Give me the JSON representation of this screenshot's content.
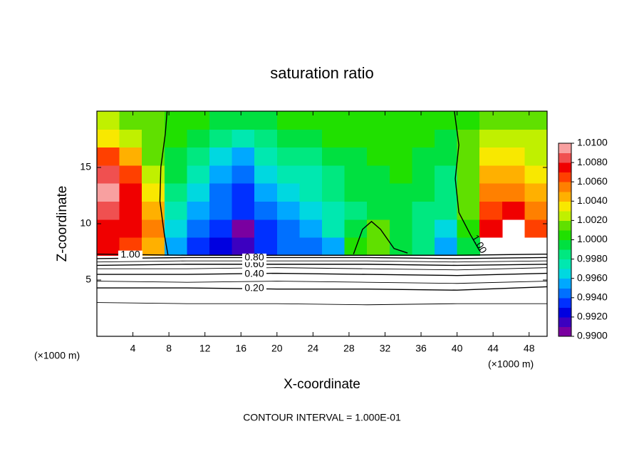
{
  "chart_data": {
    "type": "heatmap",
    "title": "saturation ratio",
    "xlabel": "X-coordinate",
    "ylabel": "Z-coordinate",
    "x_unit_label": "(×1000 m)",
    "footer": "CONTOUR INTERVAL = 1.000E-01",
    "xlim": [
      0,
      50
    ],
    "xticks": [
      4,
      8,
      12,
      16,
      20,
      24,
      28,
      32,
      36,
      40,
      44,
      48
    ],
    "ylim": [
      0,
      20
    ],
    "yticks": [
      5,
      10,
      15
    ],
    "x": [
      1.25,
      3.75,
      6.25,
      8.75,
      11.25,
      13.75,
      16.25,
      18.75,
      21.25,
      23.75,
      26.25,
      28.75,
      31.25,
      33.75,
      36.25,
      38.75,
      41.25,
      43.75,
      46.25,
      48.75
    ],
    "y": [
      8.0,
      9.6,
      11.2,
      12.8,
      14.4,
      16.0,
      17.6,
      19.2
    ],
    "values": [
      [
        1.007,
        1.006,
        1.004,
        0.995,
        0.993,
        0.992,
        0.991,
        0.993,
        0.994,
        0.994,
        0.995,
        1.0,
        1.001,
        0.999,
        0.998,
        0.995,
        0.999,
        null,
        null,
        null
      ],
      [
        1.007,
        1.007,
        1.005,
        0.996,
        0.994,
        0.993,
        0.99,
        0.993,
        0.994,
        0.995,
        0.997,
        0.999,
        1.001,
        0.999,
        0.998,
        0.996,
        1.0,
        1.007,
        null,
        1.006
      ],
      [
        1.008,
        1.007,
        1.004,
        0.997,
        0.995,
        0.994,
        0.993,
        0.994,
        0.995,
        0.996,
        0.997,
        0.998,
        0.999,
        0.999,
        0.998,
        0.998,
        1.001,
        1.006,
        1.007,
        1.005
      ],
      [
        1.009,
        1.007,
        1.003,
        0.998,
        0.996,
        0.994,
        0.993,
        0.995,
        0.996,
        0.997,
        0.998,
        0.999,
        0.999,
        0.999,
        0.999,
        0.998,
        1.001,
        1.005,
        1.005,
        1.004
      ],
      [
        1.008,
        1.006,
        1.002,
        0.999,
        0.997,
        0.995,
        0.994,
        0.996,
        0.997,
        0.997,
        0.998,
        0.999,
        0.999,
        1.0,
        0.999,
        0.998,
        1.001,
        1.004,
        1.004,
        1.003
      ],
      [
        1.006,
        1.004,
        1.001,
        0.999,
        0.998,
        0.996,
        0.995,
        0.997,
        0.998,
        0.998,
        0.999,
        0.999,
        1.0,
        1.0,
        0.999,
        0.999,
        1.001,
        1.003,
        1.003,
        1.002
      ],
      [
        1.003,
        1.002,
        1.001,
        1.0,
        0.999,
        0.998,
        0.997,
        0.998,
        0.999,
        0.999,
        1.0,
        1.0,
        1.0,
        1.0,
        1.0,
        0.999,
        1.001,
        1.002,
        1.002,
        1.002
      ],
      [
        1.002,
        1.001,
        1.001,
        1.0,
        1.0,
        0.999,
        0.999,
        0.999,
        1.0,
        1.0,
        1.0,
        1.0,
        1.0,
        1.0,
        1.0,
        1.0,
        1.0,
        1.001,
        1.001,
        1.001
      ]
    ],
    "colorbar": {
      "lim": [
        0.99,
        1.01
      ],
      "ticks": [
        {
          "value": 1.01,
          "label": "1.0100"
        },
        {
          "value": 1.008,
          "label": "1.0080"
        },
        {
          "value": 1.006,
          "label": "1.0060"
        },
        {
          "value": 1.004,
          "label": "1.0040"
        },
        {
          "value": 1.002,
          "label": "1.0020"
        },
        {
          "value": 1.0,
          "label": "1.0000"
        },
        {
          "value": 0.998,
          "label": "0.9980"
        },
        {
          "value": 0.996,
          "label": "0.9960"
        },
        {
          "value": 0.994,
          "label": "0.9940"
        },
        {
          "value": 0.992,
          "label": "0.9920"
        },
        {
          "value": 0.99,
          "label": "0.9900"
        }
      ],
      "colors": [
        "#7a00a0",
        "#3c00c0",
        "#0000e0",
        "#0030ff",
        "#0070ff",
        "#00a8ff",
        "#00d8e0",
        "#00e8b0",
        "#00e880",
        "#00e040",
        "#20e000",
        "#60e000",
        "#c0f000",
        "#f8e800",
        "#ffb000",
        "#ff8000",
        "#ff4000",
        "#f00000",
        "#f05050",
        "#f8a0a0"
      ]
    },
    "contours": {
      "x": [
        0,
        10,
        20,
        30,
        40,
        50
      ],
      "lines": [
        {
          "z": [
            3.0,
            2.9,
            2.9,
            2.8,
            2.9,
            2.9
          ]
        },
        {
          "level": {
            "value": 0.2,
            "label": "0.20"
          },
          "z": [
            4.3,
            4.3,
            4.2,
            4.2,
            4.1,
            4.4
          ]
        },
        {
          "z": [
            4.9,
            4.8,
            4.9,
            4.8,
            4.7,
            4.9
          ]
        },
        {
          "level": {
            "value": 0.4,
            "label": "0.40"
          },
          "z": [
            5.5,
            5.5,
            5.6,
            5.5,
            5.4,
            5.6
          ]
        },
        {
          "z": [
            6.0,
            6.0,
            6.1,
            6.0,
            5.9,
            6.1
          ]
        },
        {
          "level": {
            "value": 0.6,
            "label": "0.60"
          },
          "z": [
            6.3,
            6.4,
            6.4,
            6.4,
            6.3,
            6.4
          ]
        },
        {
          "z": [
            6.6,
            6.7,
            6.7,
            6.7,
            6.6,
            6.7
          ]
        },
        {
          "level": {
            "value": 0.8,
            "label": "0.80"
          },
          "z": [
            6.9,
            7.0,
            7.0,
            7.0,
            6.9,
            7.0
          ]
        },
        {
          "level": {
            "value": 1.0,
            "label": "1.00"
          },
          "z": [
            7.3,
            7.2,
            7.2,
            7.2,
            7.2,
            7.3
          ]
        }
      ],
      "unity_curves": [
        {
          "x": [
            7.8,
            7.6,
            7.1,
            7.0,
            7.5,
            7.9
          ],
          "z": [
            20,
            18,
            15,
            12,
            9,
            7.2
          ]
        },
        {
          "x": [
            28.5,
            29.5,
            30.5,
            31.5,
            33.0,
            34.5
          ],
          "z": [
            7.3,
            9.5,
            10.2,
            9.5,
            7.8,
            7.4
          ]
        },
        {
          "x": [
            39.7,
            40.2,
            39.8,
            40.2,
            41.5,
            42.5
          ],
          "z": [
            20,
            17,
            14,
            11,
            9,
            7.6
          ]
        }
      ]
    }
  }
}
